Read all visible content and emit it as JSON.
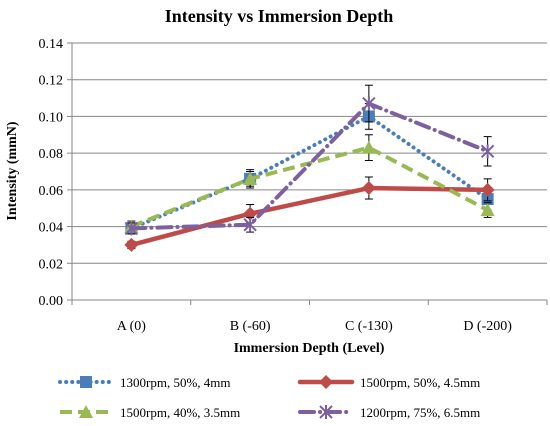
{
  "chart_data": {
    "type": "line",
    "title": "Intensity vs Immersion Depth",
    "xlabel": "Immersion Depth (Level)",
    "ylabel": "Intensity (mmN)",
    "categories": [
      "A (0)",
      "B (-60)",
      "C (-130)",
      "D (-200)"
    ],
    "ylim": [
      0,
      0.14
    ],
    "yticks": [
      "0.00",
      "0.02",
      "0.04",
      "0.06",
      "0.08",
      "0.10",
      "0.12",
      "0.14"
    ],
    "grid": "horizontal",
    "legend_position": "bottom",
    "series": [
      {
        "name": "1300rpm, 50%, 4mm",
        "color": "#4a7ebb",
        "line_style": "dotted",
        "marker": "square",
        "values": [
          0.039,
          0.066,
          0.1,
          0.055
        ],
        "errors": [
          0.003,
          0.004,
          0.007,
          0.006
        ]
      },
      {
        "name": "1500rpm, 50%, 4.5mm",
        "color": "#be4b48",
        "line_style": "solid",
        "marker": "diamond",
        "values": [
          0.03,
          0.047,
          0.061,
          0.06
        ],
        "errors": [
          0.002,
          0.005,
          0.006,
          0.006
        ]
      },
      {
        "name": "1500rpm, 40%, 3.5mm",
        "color": "#98b954",
        "line_style": "dashed",
        "marker": "triangle",
        "values": [
          0.04,
          0.066,
          0.083,
          0.049
        ],
        "errors": [
          0.003,
          0.005,
          0.007,
          0.004
        ]
      },
      {
        "name": "1200rpm, 75%, 6.5mm",
        "color": "#7d60a0",
        "line_style": "dashdot",
        "marker": "star",
        "values": [
          0.039,
          0.041,
          0.107,
          0.081
        ],
        "errors": [
          0.003,
          0.004,
          0.01,
          0.008
        ]
      }
    ]
  }
}
